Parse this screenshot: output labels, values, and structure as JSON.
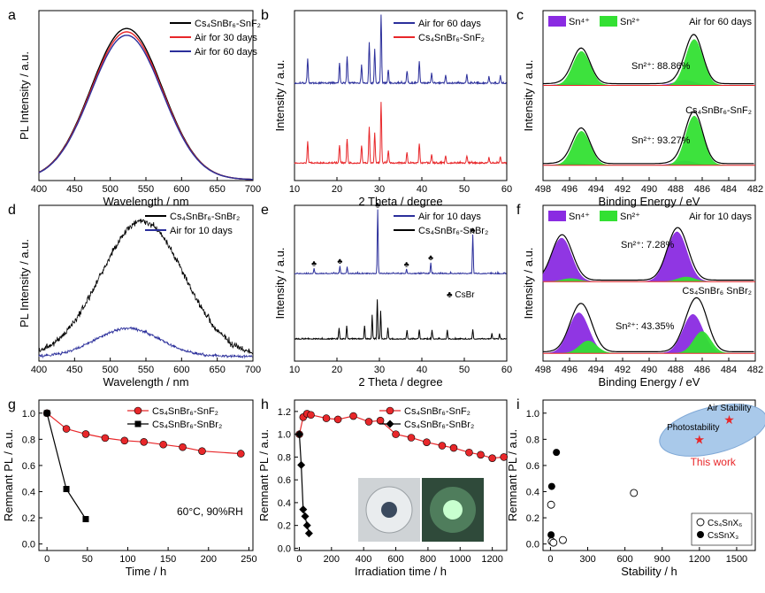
{
  "panel_labels": [
    "a",
    "b",
    "c",
    "d",
    "e",
    "f",
    "g",
    "h",
    "i"
  ],
  "chart_data": [
    {
      "id": "a",
      "type": "line",
      "xlabel": "Wavelength / nm",
      "ylabel": "PL Intensity / a.u.",
      "xlim": [
        400,
        700
      ],
      "xticks": [
        400,
        450,
        500,
        550,
        600,
        650,
        700
      ],
      "series": [
        {
          "name": "Cs₄SnBr₆-SnF₂",
          "color": "#000000",
          "peak": 523,
          "amp": 0.89,
          "sigma": 50
        },
        {
          "name": "Air for 30 days",
          "color": "#e8272a",
          "peak": 523,
          "amp": 0.87,
          "sigma": 50
        },
        {
          "name": "Air for 60 days",
          "color": "#2b2f9b",
          "peak": 523,
          "amp": 0.85,
          "sigma": 50
        }
      ]
    },
    {
      "id": "b",
      "type": "line",
      "xlabel": "2 Theta / degree",
      "ylabel": "Intensity / a.u.",
      "xlim": [
        10,
        60
      ],
      "xticks": [
        10,
        20,
        30,
        40,
        50,
        60
      ],
      "peaks": [
        [
          13.1,
          0.35
        ],
        [
          20.6,
          0.3
        ],
        [
          22.4,
          0.4
        ],
        [
          25.8,
          0.28
        ],
        [
          27.6,
          0.6
        ],
        [
          28.9,
          0.5
        ],
        [
          30.4,
          1.0
        ],
        [
          32.1,
          0.2
        ],
        [
          36.5,
          0.18
        ],
        [
          39.4,
          0.32
        ],
        [
          42.3,
          0.15
        ],
        [
          45.6,
          0.12
        ],
        [
          50.6,
          0.12
        ],
        [
          55.8,
          0.1
        ],
        [
          58.5,
          0.1
        ]
      ],
      "series": [
        {
          "name": "Air for 60 days",
          "color": "#2b2f9b"
        },
        {
          "name": "Cs₄SnBr₆-SnF₂",
          "color": "#e8272a"
        }
      ]
    },
    {
      "id": "c",
      "type": "area",
      "xlabel": "Binding Energy / eV",
      "ylabel": "Intensity / a.u.",
      "xlim": [
        498,
        482
      ],
      "xticks": [
        498,
        496,
        494,
        492,
        490,
        488,
        486,
        484,
        482
      ],
      "legend": [
        {
          "name": "Sn⁴⁺",
          "color": "#8a2be2"
        },
        {
          "name": "Sn²⁺",
          "color": "#33e033"
        }
      ],
      "title_note": "Air for 60 days",
      "annotations": [
        "Sn²⁺: 88.86%",
        "Sn²⁺: 93.27%"
      ],
      "sample_label": "Cs₄SnBr₆-SnF₂"
    },
    {
      "id": "d",
      "type": "line",
      "xlabel": "Wavelength / nm",
      "ylabel": "PL Intensity / a.u.",
      "xlim": [
        400,
        700
      ],
      "xticks": [
        400,
        450,
        500,
        550,
        600,
        650,
        700
      ],
      "series": [
        {
          "name": "Cs₄SnBr₆-SnBr₂",
          "color": "#000000",
          "peak": 545,
          "amp": 0.87,
          "sigma": 58
        },
        {
          "name": "Air for 10 days",
          "color": "#2b2f9b",
          "peak": 525,
          "amp": 0.18,
          "sigma": 45
        }
      ]
    },
    {
      "id": "e",
      "type": "line",
      "xlabel": "2 Theta / degree",
      "ylabel": "Intensity / a.u.",
      "xlim": [
        10,
        60
      ],
      "xticks": [
        10,
        20,
        30,
        40,
        50,
        60
      ],
      "peaks_top": [
        [
          14.6,
          0.08
        ],
        [
          20.7,
          0.12
        ],
        [
          22.4,
          0.1
        ],
        [
          29.6,
          1.0
        ],
        [
          36.4,
          0.07
        ],
        [
          42.1,
          0.17
        ],
        [
          52.0,
          0.6
        ]
      ],
      "peaks_bottom": [
        [
          20.5,
          0.25
        ],
        [
          22.3,
          0.3
        ],
        [
          26.5,
          0.3
        ],
        [
          28.3,
          0.55
        ],
        [
          29.5,
          0.9
        ],
        [
          30.3,
          0.65
        ],
        [
          32.0,
          0.25
        ],
        [
          36.5,
          0.2
        ],
        [
          39.4,
          0.22
        ],
        [
          42.4,
          0.2
        ],
        [
          46.0,
          0.2
        ],
        [
          52.0,
          0.22
        ],
        [
          56.5,
          0.12
        ],
        [
          58.3,
          0.12
        ]
      ],
      "marker_peaks": [
        14.6,
        20.7,
        29.6,
        36.4,
        42.1,
        52.0
      ],
      "marker_legend": "CsBr",
      "series": [
        {
          "name": "Air for 10 days",
          "color": "#2b2f9b"
        },
        {
          "name": "Cs₄SnBr₆-SnBr₂",
          "color": "#000000"
        }
      ]
    },
    {
      "id": "f",
      "type": "area",
      "xlabel": "Binding Energy / eV",
      "ylabel": "Intensity / a.u.",
      "xlim": [
        498,
        482
      ],
      "xticks": [
        498,
        496,
        494,
        492,
        490,
        488,
        486,
        484,
        482
      ],
      "legend": [
        {
          "name": "Sn⁴⁺",
          "color": "#8a2be2"
        },
        {
          "name": "Sn²⁺",
          "color": "#33e033"
        }
      ],
      "title_note": "Air for 10 days",
      "annotations": [
        "Sn²⁺: 7.28%",
        "Sn²⁺: 43.35%"
      ],
      "sample_label": "Cs₄SnBr₆ SnBr₂"
    },
    {
      "id": "g",
      "type": "line",
      "xlabel": "Time / h",
      "ylabel": "Remnant PL / a.u.",
      "xlim": [
        -10,
        255
      ],
      "ylim": [
        -0.05,
        1.1
      ],
      "xticks": [
        0,
        50,
        100,
        150,
        200,
        250
      ],
      "yticks": [
        0.0,
        0.2,
        0.4,
        0.6,
        0.8,
        1.0
      ],
      "annotation": "60°C, 90%RH",
      "series": [
        {
          "name": "Cs₄SnBr₆-SnF₂",
          "color": "#e8272a",
          "marker": "circle",
          "x": [
            0,
            24,
            48,
            72,
            96,
            120,
            144,
            168,
            192,
            240
          ],
          "y": [
            1.0,
            0.88,
            0.84,
            0.81,
            0.79,
            0.78,
            0.76,
            0.74,
            0.71,
            0.69
          ]
        },
        {
          "name": "Cs₄SnBr₆-SnBr₂",
          "color": "#000000",
          "marker": "square",
          "x": [
            0,
            24,
            48
          ],
          "y": [
            1.0,
            0.42,
            0.19
          ]
        }
      ]
    },
    {
      "id": "h",
      "type": "line",
      "xlabel": "Irradiation time / h",
      "ylabel": "Remnant PL / a.u.",
      "xlim": [
        -30,
        1290
      ],
      "ylim": [
        -0.02,
        1.3
      ],
      "xticks": [
        0,
        200,
        400,
        600,
        800,
        1000,
        1200
      ],
      "yticks": [
        0.0,
        0.2,
        0.4,
        0.6,
        0.8,
        1.0,
        1.2
      ],
      "series": [
        {
          "name": "Cs₄SnBr₆-SnF₂",
          "color": "#e8272a",
          "marker": "circle",
          "x": [
            0,
            24,
            48,
            72,
            168,
            240,
            336,
            432,
            504,
            600,
            696,
            792,
            888,
            960,
            1056,
            1128,
            1200,
            1272
          ],
          "y": [
            1.0,
            1.15,
            1.18,
            1.17,
            1.14,
            1.13,
            1.16,
            1.11,
            1.12,
            1.0,
            0.97,
            0.93,
            0.9,
            0.88,
            0.84,
            0.82,
            0.79,
            0.8
          ]
        },
        {
          "name": "Cs₄SnBr₆-SnBr₂",
          "color": "#000000",
          "marker": "diamond",
          "x": [
            0,
            12,
            24,
            36,
            48,
            60
          ],
          "y": [
            1.0,
            0.73,
            0.34,
            0.28,
            0.2,
            0.13
          ]
        }
      ]
    },
    {
      "id": "i",
      "type": "scatter",
      "xlabel": "Stability / h",
      "ylabel": "Remnant PL / a.u.",
      "xlim": [
        -60,
        1650
      ],
      "ylim": [
        -0.05,
        1.1
      ],
      "xticks": [
        0,
        300,
        600,
        900,
        1200,
        1500
      ],
      "yticks": [
        0.0,
        0.2,
        0.4,
        0.6,
        0.8,
        1.0
      ],
      "highlight_labels": [
        "Air Stability",
        "Photostability"
      ],
      "this_work": "This work",
      "this_work_points": [
        {
          "x": 1440,
          "y": 0.95
        },
        {
          "x": 1200,
          "y": 0.8
        }
      ],
      "series": [
        {
          "name": "Cs₄SnX₆",
          "marker": "open-circle",
          "x": [
            5,
            10,
            24,
            100,
            672
          ],
          "y": [
            0.3,
            0.02,
            0.01,
            0.03,
            0.39
          ]
        },
        {
          "name": "CsSnX₃",
          "marker": "filled-circle",
          "x": [
            5,
            10,
            48
          ],
          "y": [
            0.07,
            0.44,
            0.7
          ]
        }
      ]
    }
  ]
}
